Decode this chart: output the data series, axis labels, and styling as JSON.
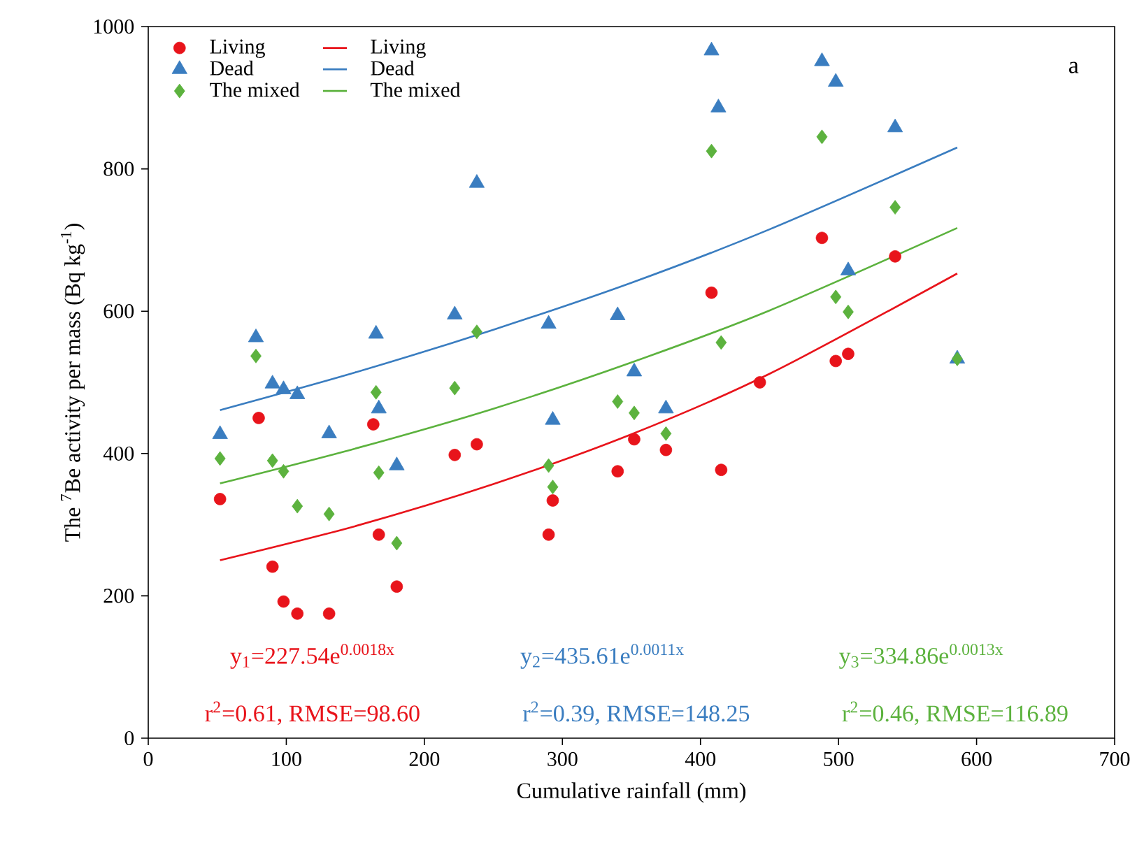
{
  "chart_data": {
    "type": "scatter",
    "xlabel": "Cumulative rainfall (mm)",
    "ylabel": "The $^{7}$Be activity per mass (Bq kg$^{-1}$)",
    "xlim": [
      0,
      700
    ],
    "xticks": [
      0,
      100,
      200,
      300,
      400,
      500,
      600,
      700
    ],
    "ylim": [
      0,
      1000
    ],
    "yticks": [
      0,
      200,
      400,
      600,
      800,
      1000
    ],
    "grid": false,
    "legend": "top left",
    "series": [
      {
        "name": "Living",
        "marker": "circle",
        "color": "#e8141b",
        "x": [
          52,
          80,
          90,
          98,
          108,
          131,
          163,
          167,
          180,
          222,
          238,
          290,
          293,
          340,
          352,
          375,
          408,
          415,
          443,
          498,
          488,
          507,
          541
        ],
        "values": [
          336,
          450,
          241,
          192,
          175,
          175,
          441,
          286,
          213,
          398,
          413,
          286,
          334,
          375,
          420,
          405,
          626,
          377,
          500,
          530,
          703,
          540,
          677
        ]
      },
      {
        "name": "Living",
        "type": "line",
        "color": "#e8141b",
        "x": [
          52,
          150,
          250,
          350,
          450,
          586
        ],
        "values": [
          250,
          298,
          357,
          427,
          512,
          653
        ]
      },
      {
        "name": "Dead",
        "marker": "triangle",
        "color": "#3a7dc0",
        "x": [
          52,
          78,
          90,
          98,
          108,
          131,
          165,
          167,
          180,
          222,
          238,
          290,
          293,
          340,
          352,
          375,
          408,
          413,
          488,
          498,
          507,
          541,
          586
        ],
        "values": [
          427,
          563,
          498,
          490,
          483,
          428,
          568,
          463,
          383,
          595,
          780,
          582,
          447,
          594,
          515,
          463,
          966,
          886,
          951,
          922,
          657,
          858,
          533
        ]
      },
      {
        "name": "Dead",
        "type": "line",
        "color": "#3a7dc0",
        "x": [
          52,
          150,
          250,
          350,
          450,
          586
        ],
        "values": [
          461,
          514,
          574,
          640,
          715,
          830
        ]
      },
      {
        "name": "The mixed",
        "marker": "diamond",
        "color": "#5cb23e",
        "x": [
          52,
          78,
          90,
          98,
          108,
          131,
          165,
          167,
          180,
          222,
          238,
          290,
          293,
          340,
          352,
          375,
          408,
          415,
          488,
          498,
          507,
          541,
          586
        ],
        "values": [
          393,
          537,
          390,
          375,
          326,
          315,
          486,
          373,
          274,
          492,
          571,
          383,
          353,
          473,
          457,
          428,
          825,
          556,
          845,
          620,
          599,
          746,
          533
        ]
      },
      {
        "name": "The mixed",
        "type": "line",
        "color": "#5cb23e",
        "x": [
          52,
          150,
          250,
          350,
          450,
          586
        ],
        "values": [
          358,
          407,
          463,
          528,
          601,
          717
        ]
      }
    ],
    "annotations": [
      "a",
      "y$_{1}$=227.54e$^{0.0018x}$",
      "r$^{2}$=0.61, RMSE=98.60",
      "y$_{2}$=435.61e$^{0.0011x}$",
      "r$^{2}$=0.39, RMSE=148.25",
      "y$_{3}$=334.86e$^{0.0013x}$",
      "r$^{2}$=0.46, RMSE=116.89"
    ]
  }
}
